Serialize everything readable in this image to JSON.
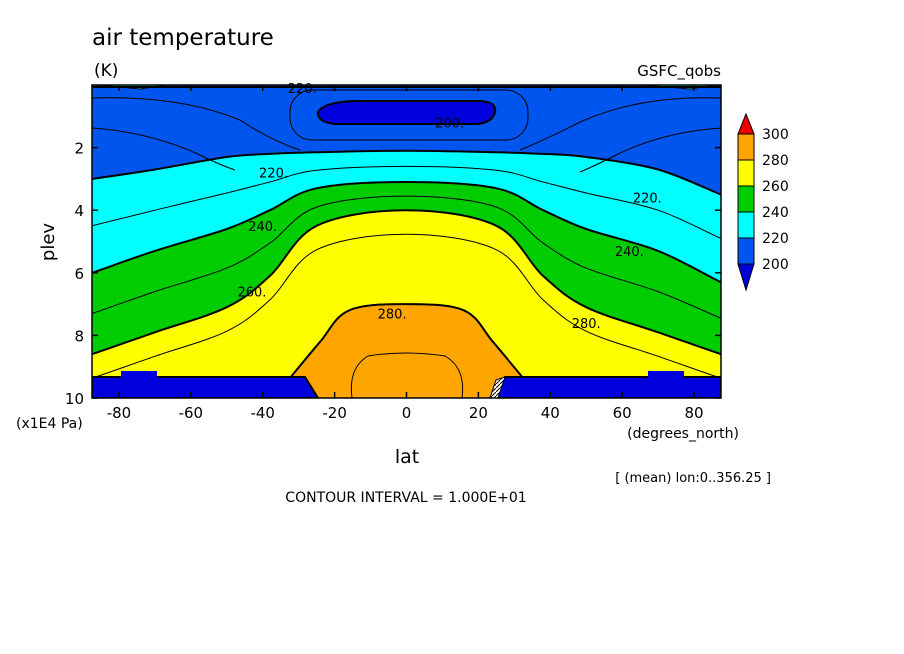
{
  "chart_data": {
    "type": "contour",
    "title": "air temperature",
    "units": "(K)",
    "dataset": "GSFC_qobs",
    "xlabel": "lat",
    "ylabel": "plev",
    "x_units": "(degrees_north)",
    "y_units": "(x1E4 Pa)",
    "xlim": [
      -87.5,
      87.5
    ],
    "ylim": [
      10,
      0
    ],
    "x_ticks": [
      -80,
      -60,
      -40,
      -20,
      0,
      20,
      40,
      60,
      80
    ],
    "y_ticks": [
      2,
      4,
      6,
      8,
      10
    ],
    "averaging_note": "[ (mean) lon:0..356.25 ]",
    "contour_interval_note": "CONTOUR INTERVAL = 1.000E+01",
    "colorbar": {
      "ticks": [
        200,
        220,
        240,
        260,
        280,
        300
      ],
      "bands": [
        {
          "range": "<200",
          "color": "#0000dd"
        },
        {
          "range": "200-220",
          "color": "#0055ee"
        },
        {
          "range": "220-240",
          "color": "#00ffff"
        },
        {
          "range": "240-260",
          "color": "#00cc00"
        },
        {
          "range": "260-280",
          "color": "#ffff00"
        },
        {
          "range": "280-300",
          "color": "#ffa500"
        },
        {
          "range": ">300",
          "color": "#ee0000"
        }
      ]
    },
    "contour_labels": [
      {
        "text": "220.",
        "lat": -29,
        "plev": 0.1
      },
      {
        "text": "200.",
        "lat": 12,
        "plev": 1.2
      },
      {
        "text": "220.",
        "lat": -37,
        "plev": 2.8
      },
      {
        "text": "220.",
        "lat": 67,
        "plev": 3.6
      },
      {
        "text": "240.",
        "lat": -40,
        "plev": 4.5
      },
      {
        "text": "240.",
        "lat": 62,
        "plev": 5.3
      },
      {
        "text": "260.",
        "lat": -43,
        "plev": 6.6
      },
      {
        "text": "280.",
        "lat": -4,
        "plev": 7.3
      },
      {
        "text": "280.",
        "lat": 50,
        "plev": 7.6
      }
    ],
    "boundary_lines": [
      {
        "name": "220",
        "lat": [
          -87.5,
          -70,
          -50,
          -38,
          -25,
          0,
          25,
          38,
          50,
          70,
          87.5
        ],
        "plev": [
          3.0,
          2.7,
          2.3,
          2.2,
          2.15,
          2.1,
          2.15,
          2.2,
          2.3,
          2.7,
          3.5
        ]
      },
      {
        "name": "240",
        "lat": [
          -87.5,
          -70,
          -50,
          -38,
          -25,
          0,
          25,
          38,
          50,
          70,
          87.5
        ],
        "plev": [
          6.0,
          5.3,
          4.6,
          4.0,
          3.3,
          3.1,
          3.3,
          4.0,
          4.6,
          5.3,
          6.3
        ]
      },
      {
        "name": "260",
        "lat": [
          -87.5,
          -70,
          -50,
          -38,
          -25,
          0,
          25,
          38,
          50,
          70,
          87.5
        ],
        "plev": [
          8.6,
          7.9,
          7.1,
          6.1,
          4.5,
          4.0,
          4.5,
          6.1,
          7.1,
          7.9,
          8.6
        ]
      },
      {
        "name": "280",
        "lat": [
          -32,
          -24,
          -16,
          0,
          16,
          24,
          32
        ],
        "plev": [
          9.3,
          8.2,
          7.2,
          7.0,
          7.2,
          8.2,
          9.3
        ]
      }
    ]
  }
}
